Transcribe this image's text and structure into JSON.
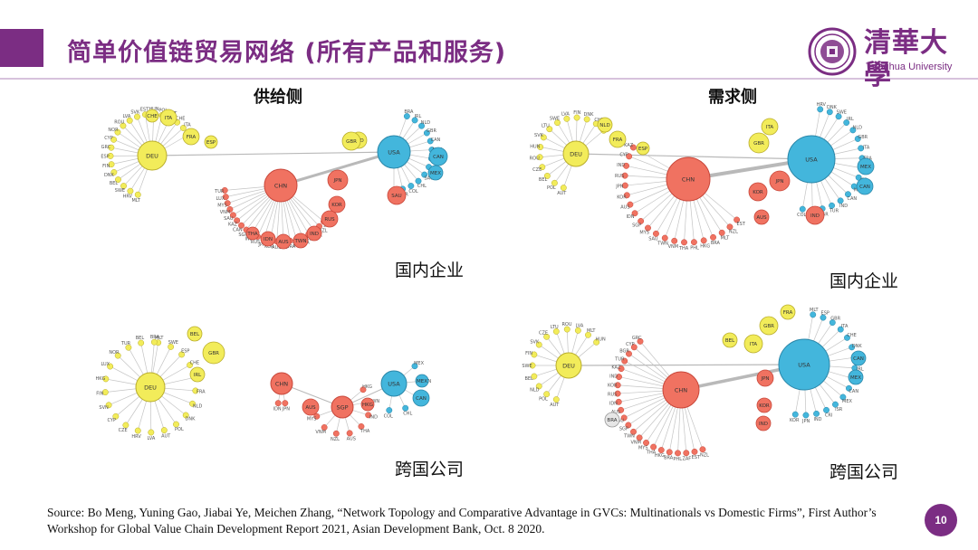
{
  "slide": {
    "title": "简单价值链贸易网络 (所有产品和服务)",
    "page_number": "10",
    "accent_color": "#7b2d83"
  },
  "logo": {
    "name_cn": "清華大學",
    "name_en": "Tsinghua University",
    "icon": "tsinghua-seal-icon"
  },
  "panel_headers": {
    "supply": "供给侧",
    "demand": "需求侧"
  },
  "captions": {
    "domestic_supply": "国内企业",
    "domestic_demand": "国内企业",
    "mne_supply": "跨国公司",
    "mne_demand": "跨国公司"
  },
  "source": "Source: Bo Meng, Yuning Gao,  Jiabai Ye, Meichen Zhang, “Network Topology and Comparative Advantage in GVCs: Multinationals  vs Domestic Firms”, First Author’s Workshop for Global Value Chain Development  Report 2021, Asian Development  Bank, Oct. 8 2020.",
  "colors": {
    "europe": "#f2ec5a",
    "europe_stroke": "#b9ad2c",
    "asia": "#f07261",
    "asia_stroke": "#c8473a",
    "americas": "#43b6dc",
    "americas_stroke": "#2a86a8",
    "other": "#e6e6e6",
    "edge": "#c4c4c4"
  },
  "networks": [
    {
      "id": "domestic-supply",
      "hubs": [
        {
          "label": "DEU",
          "region": "europe",
          "spokes": [
            "MLT",
            "HRV",
            "SWE",
            "BEL",
            "DNK",
            "FIN",
            "ESP",
            "GRC",
            "CYP",
            "NOR",
            "ROU",
            "LVA",
            "SVK",
            "EST",
            "HUN",
            "POL",
            "AUT",
            "CHE",
            "ITA",
            "FRA"
          ]
        },
        {
          "label": "CHN",
          "region": "asia",
          "spokes": [
            "ZAF",
            "NZL",
            "MEX",
            "PHL",
            "THA",
            "TWN",
            "BRA",
            "IDN",
            "AUS",
            "KOR",
            "JPN",
            "RUS",
            "IND",
            "SGP",
            "CAN",
            "KAZ",
            "SAU",
            "VNM",
            "MYS",
            "LUX",
            "TUR"
          ]
        },
        {
          "label": "USA",
          "region": "americas",
          "spokes": [
            "BRA",
            "IRL",
            "NLD",
            "GBR",
            "CAN",
            "MEX",
            "ISR",
            "CRI",
            "SAU",
            "CHL",
            "COL",
            "PER",
            "ARG"
          ]
        }
      ],
      "nodes": [
        "ITA",
        "CHE",
        "FRA",
        "ESP",
        "NLD",
        "GBR",
        "JPN",
        "KOR",
        "RUS",
        "IND",
        "TWN",
        "AUS",
        "IDN",
        "THA",
        "SAU",
        "CAN",
        "MEX"
      ]
    },
    {
      "id": "domestic-demand",
      "hubs": [
        {
          "label": "DEU",
          "region": "europe",
          "spokes": [
            "AUT",
            "POL",
            "BEL",
            "CZE",
            "ROU",
            "HUN",
            "SVK",
            "LTU",
            "SWE",
            "LVA",
            "FIN",
            "DNK",
            "CHE",
            "ESP"
          ]
        },
        {
          "label": "CHN",
          "region": "asia",
          "spokes": [
            "EST",
            "NZL",
            "MLT",
            "BRA",
            "HKG",
            "PHL",
            "THA",
            "VNM",
            "TWN",
            "SAU",
            "MYS",
            "SGP",
            "IDN",
            "AUS",
            "KOR",
            "JPN",
            "RUS",
            "IND",
            "CYP",
            "KAZ"
          ]
        },
        {
          "label": "USA",
          "region": "americas",
          "spokes": [
            "HRV",
            "DNK",
            "SWE",
            "IRL",
            "NLD",
            "GBR",
            "ITA",
            "FRA",
            "CRI",
            "ISR",
            "MEX",
            "CAN",
            "IND",
            "TUR",
            "BGR",
            "CHL",
            "COL"
          ]
        }
      ],
      "nodes": [
        "FRA",
        "NLD",
        "ESP",
        "ITA",
        "GBR",
        "KOR",
        "JPN",
        "IND",
        "AUS",
        "MEX",
        "CAN"
      ]
    },
    {
      "id": "mne-supply",
      "hubs": [
        {
          "label": "DEU",
          "region": "europe",
          "spokes": [
            "MLT",
            "SWE",
            "ESP",
            "CHE",
            "ITA",
            "FRA",
            "NLD",
            "DNK",
            "POL",
            "AUT",
            "LVA",
            "HRV",
            "CZE",
            "CYP",
            "SVN",
            "FIN",
            "HKG",
            "LUX",
            "NOR",
            "TUR",
            "BEL",
            "BRA"
          ]
        },
        {
          "label": "CHN",
          "region": "asia",
          "spokes": [
            "JPN",
            "IDN"
          ]
        },
        {
          "label": "SGP",
          "region": "asia",
          "spokes": [
            "HKG",
            "TWN",
            "IND",
            "THA",
            "AUS",
            "NZL",
            "VNM",
            "MYS"
          ]
        },
        {
          "label": "USA",
          "region": "americas",
          "spokes": [
            "MEX",
            "CAN",
            "BRA",
            "CHL",
            "COL"
          ]
        }
      ],
      "nodes": [
        "GBR",
        "AUS",
        "HKG",
        "IRL",
        "BEL",
        "MEX",
        "CAN"
      ]
    },
    {
      "id": "mne-demand",
      "hubs": [
        {
          "label": "DEU",
          "region": "europe",
          "spokes": [
            "AUT",
            "POL",
            "NLD",
            "BEL",
            "SWE",
            "FIN",
            "SVK",
            "CZE",
            "LTU",
            "ROU",
            "LVA",
            "MLT",
            "HUN"
          ]
        },
        {
          "label": "CHN",
          "region": "asia",
          "spokes": [
            "NZL",
            "EST",
            "ZAF",
            "PHL",
            "BRA",
            "HKG",
            "THA",
            "MYS",
            "VNM",
            "TWN",
            "SGP",
            "SAU",
            "AUS",
            "IDN",
            "RUS",
            "KOR",
            "IND",
            "KAZ",
            "TUR",
            "BGR",
            "CYP",
            "GRC"
          ]
        },
        {
          "label": "USA",
          "region": "americas",
          "spokes": [
            "MLT",
            "ESP",
            "GBR",
            "ITA",
            "CHE",
            "DNK",
            "SWE",
            "IRL",
            "EST",
            "CAN",
            "MEX",
            "ISR",
            "CRI",
            "IND",
            "JPN",
            "KOR"
          ]
        }
      ],
      "nodes": [
        "GBR",
        "ITA",
        "FRA",
        "BEL",
        "JPN",
        "KOR",
        "IND",
        "CAN",
        "MEX",
        "BRA"
      ]
    }
  ]
}
